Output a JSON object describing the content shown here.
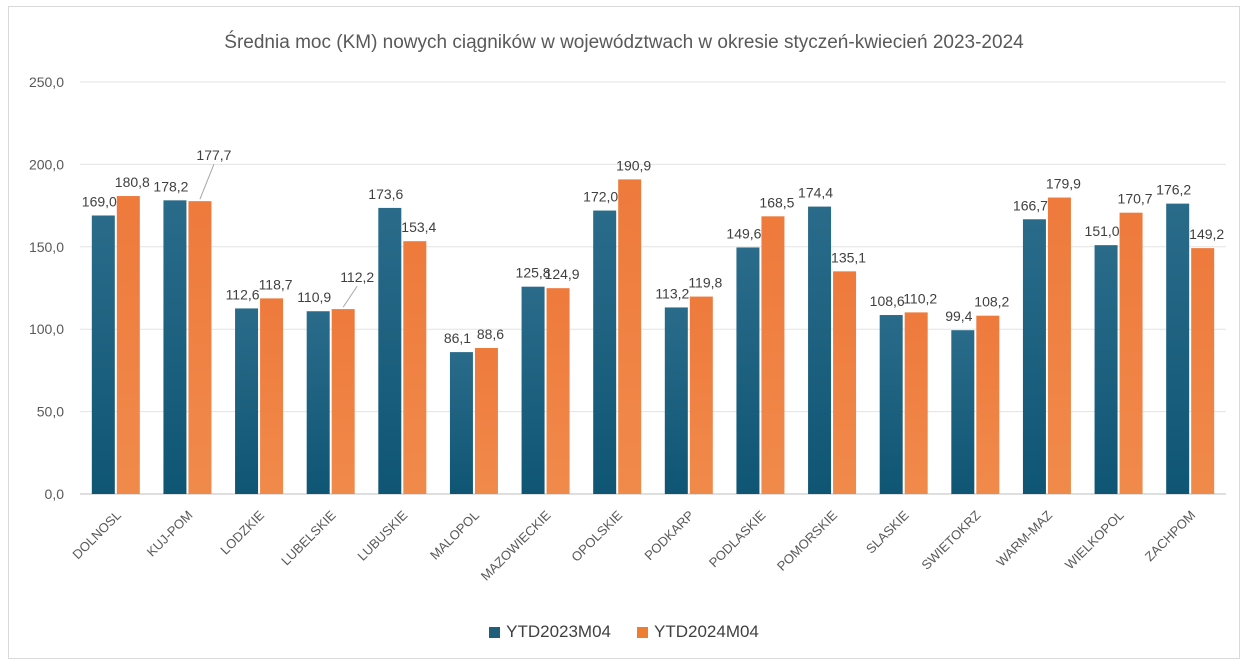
{
  "chart_data": {
    "type": "bar",
    "title": "Średnia moc (KM) nowych ciągników w województwach w okresie styczeń-kwiecień 2023-2024",
    "categories": [
      "DOLNOSL",
      "KUJ-POM",
      "LODZKIE",
      "LUBELSKIE",
      "LUBUSKIE",
      "MALOPOL",
      "MAZOWIECKIE",
      "OPOLSKIE",
      "PODKARP",
      "PODLASKIE",
      "POMORSKIE",
      "SLASKIE",
      "SWIETOKRZ",
      "WARM-MAZ",
      "WIELKOPOL",
      "ZACHPOM"
    ],
    "series": [
      {
        "name": "YTD2023M04",
        "color": "#1f5f7a",
        "values": [
          169.0,
          178.2,
          112.6,
          110.9,
          173.6,
          86.1,
          125.8,
          172.0,
          113.2,
          149.6,
          174.4,
          108.6,
          99.4,
          166.7,
          151.0,
          176.2
        ],
        "labels": [
          "169,0",
          "178,2",
          "112,6",
          "110,9",
          "173,6",
          "86,1",
          "125,8",
          "172,0",
          "113,2",
          "149,6",
          "174,4",
          "108,6",
          "99,4",
          "166,7",
          "151,0",
          "176,2"
        ]
      },
      {
        "name": "YTD2024M04",
        "color": "#ed7d31",
        "values": [
          180.8,
          177.7,
          118.7,
          112.2,
          153.4,
          88.6,
          124.9,
          190.9,
          119.8,
          168.5,
          135.1,
          110.2,
          108.2,
          179.9,
          170.7,
          149.2
        ],
        "labels": [
          "180,8",
          "177,7",
          "118,7",
          "112,2",
          "153,4",
          "88,6",
          "124,9",
          "190,9",
          "119,8",
          "168,5",
          "135,1",
          "110,2",
          "108,2",
          "179,9",
          "170,7",
          "149,2"
        ]
      }
    ],
    "yticks": [
      "0,0",
      "50,0",
      "100,0",
      "150,0",
      "200,0",
      "250,0"
    ],
    "ylim": [
      0,
      250
    ],
    "grid": true,
    "legend": "bottom"
  }
}
